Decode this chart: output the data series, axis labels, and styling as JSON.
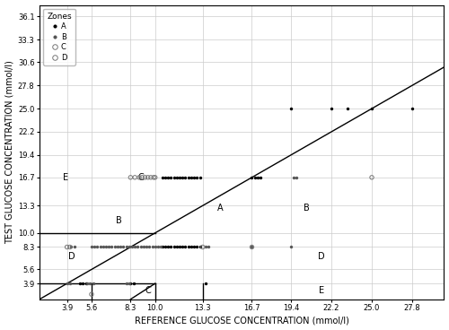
{
  "xlabel": "REFERENCE GLUCOSE CONCENTRATION (mmol/l)",
  "ylabel": "TEST GLUCOSE CONCENTRATION (mmol/l)",
  "xlim": [
    2.0,
    30.0
  ],
  "ylim": [
    2.0,
    37.5
  ],
  "xticks": [
    3.9,
    5.6,
    8.3,
    10.0,
    13.3,
    16.7,
    19.4,
    22.2,
    25.0,
    27.8
  ],
  "yticks": [
    3.9,
    5.6,
    8.3,
    10.0,
    13.3,
    16.7,
    19.4,
    22.2,
    25.0,
    27.8,
    30.6,
    33.3,
    36.1
  ],
  "points_A": [
    [
      10.5,
      8.3
    ],
    [
      10.7,
      8.3
    ],
    [
      10.9,
      8.3
    ],
    [
      11.1,
      8.3
    ],
    [
      11.3,
      8.3
    ],
    [
      11.5,
      8.3
    ],
    [
      11.7,
      8.3
    ],
    [
      11.9,
      8.3
    ],
    [
      12.1,
      8.3
    ],
    [
      12.3,
      8.3
    ],
    [
      12.5,
      8.3
    ],
    [
      12.7,
      8.3
    ],
    [
      12.9,
      8.3
    ],
    [
      13.1,
      8.3
    ],
    [
      10.5,
      16.7
    ],
    [
      10.7,
      16.7
    ],
    [
      10.9,
      16.7
    ],
    [
      11.1,
      16.7
    ],
    [
      11.3,
      16.7
    ],
    [
      11.5,
      16.7
    ],
    [
      11.7,
      16.7
    ],
    [
      11.9,
      16.7
    ],
    [
      12.1,
      16.7
    ],
    [
      12.3,
      16.7
    ],
    [
      12.5,
      16.7
    ],
    [
      12.7,
      16.7
    ],
    [
      12.9,
      16.7
    ],
    [
      13.1,
      16.7
    ],
    [
      16.7,
      16.7
    ],
    [
      16.9,
      16.7
    ],
    [
      17.1,
      16.7
    ],
    [
      17.3,
      16.7
    ],
    [
      19.4,
      25.0
    ],
    [
      22.2,
      25.0
    ],
    [
      23.3,
      25.0
    ],
    [
      25.0,
      25.0
    ],
    [
      27.8,
      25.0
    ],
    [
      4.8,
      3.9
    ],
    [
      5.0,
      3.9
    ],
    [
      5.2,
      3.9
    ],
    [
      8.3,
      3.9
    ],
    [
      8.5,
      3.9
    ],
    [
      13.5,
      3.9
    ]
  ],
  "points_B": [
    [
      4.2,
      8.3
    ],
    [
      4.4,
      8.3
    ],
    [
      5.6,
      8.3
    ],
    [
      5.8,
      8.3
    ],
    [
      6.0,
      8.3
    ],
    [
      6.2,
      8.3
    ],
    [
      6.4,
      8.3
    ],
    [
      6.6,
      8.3
    ],
    [
      6.8,
      8.3
    ],
    [
      7.0,
      8.3
    ],
    [
      7.2,
      8.3
    ],
    [
      7.4,
      8.3
    ],
    [
      7.6,
      8.3
    ],
    [
      7.8,
      8.3
    ],
    [
      8.0,
      8.3
    ],
    [
      8.2,
      8.3
    ],
    [
      8.4,
      8.3
    ],
    [
      8.6,
      8.3
    ],
    [
      8.8,
      8.3
    ],
    [
      9.0,
      8.3
    ],
    [
      9.2,
      8.3
    ],
    [
      9.4,
      8.3
    ],
    [
      9.6,
      8.3
    ],
    [
      9.8,
      8.3
    ],
    [
      10.0,
      8.3
    ],
    [
      10.2,
      8.3
    ],
    [
      10.4,
      8.3
    ],
    [
      13.5,
      8.3
    ],
    [
      13.7,
      8.3
    ],
    [
      16.7,
      8.3
    ],
    [
      19.4,
      8.3
    ],
    [
      19.6,
      16.7
    ],
    [
      19.8,
      16.7
    ],
    [
      3.9,
      3.9
    ],
    [
      4.1,
      3.9
    ],
    [
      5.3,
      3.9
    ],
    [
      5.5,
      3.9
    ],
    [
      5.7,
      3.9
    ],
    [
      8.0,
      3.9
    ],
    [
      8.2,
      3.9
    ]
  ],
  "points_C": [
    [
      8.3,
      16.7
    ],
    [
      8.6,
      16.7
    ],
    [
      8.9,
      16.7
    ],
    [
      9.1,
      16.7
    ],
    [
      9.3,
      16.7
    ],
    [
      9.5,
      16.7
    ],
    [
      9.7,
      16.7
    ],
    [
      9.9,
      16.7
    ],
    [
      10.0,
      16.7
    ],
    [
      25.0,
      16.7
    ]
  ],
  "points_D": [
    [
      3.9,
      8.3
    ],
    [
      4.1,
      8.3
    ],
    [
      13.3,
      8.3
    ],
    [
      16.7,
      8.3
    ],
    [
      5.6,
      2.6
    ]
  ]
}
